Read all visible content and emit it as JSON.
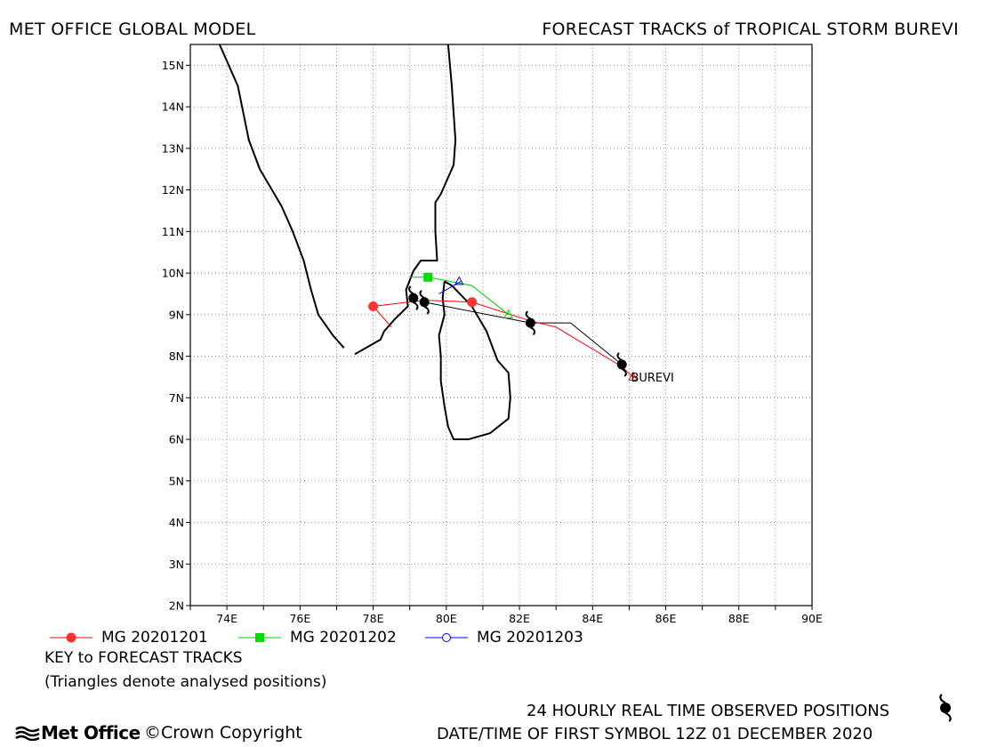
{
  "header": {
    "left_title": "MET OFFICE GLOBAL MODEL",
    "right_title": "FORECAST TRACKS of TROPICAL STORM BUREVI"
  },
  "map": {
    "lon_range": [
      73,
      90
    ],
    "lat_range": [
      2,
      15.5
    ],
    "grid": "dotted",
    "x_ticks": [
      "74E",
      "76E",
      "78E",
      "80E",
      "82E",
      "84E",
      "86E",
      "88E",
      "90E"
    ],
    "y_ticks": [
      "2N",
      "3N",
      "4N",
      "5N",
      "6N",
      "7N",
      "8N",
      "9N",
      "10N",
      "11N",
      "12N",
      "13N",
      "14N",
      "15N"
    ],
    "storm_label": "BUREVI"
  },
  "chart_data": {
    "type": "map_tracks",
    "observed_track": {
      "name": "24 HOURLY REAL TIME OBSERVED POSITIONS",
      "color": "#000000",
      "points": [
        [
          84.8,
          7.8
        ],
        [
          82.3,
          8.8
        ],
        [
          79.4,
          9.3
        ],
        [
          79.1,
          9.4
        ]
      ]
    },
    "observed_track_line": [
      [
        84.8,
        7.8
      ],
      [
        83.4,
        8.8
      ],
      [
        82.3,
        8.8
      ],
      [
        79.4,
        9.3
      ]
    ],
    "forecast_tracks": [
      {
        "name": "MG 20201201",
        "color": "#ff0000",
        "marker": "circle-filled",
        "points": [
          [
            85.1,
            7.5
          ],
          [
            84.8,
            7.75
          ],
          [
            83.0,
            8.7
          ],
          [
            82.3,
            8.85
          ],
          [
            80.7,
            9.3
          ],
          [
            79.4,
            9.35
          ],
          [
            78.0,
            9.2
          ],
          [
            78.5,
            8.7
          ]
        ],
        "markers": [
          [
            80.7,
            9.3
          ],
          [
            78.0,
            9.2
          ]
        ]
      },
      {
        "name": "MG 20201202",
        "color": "#00cc00",
        "marker": "square-filled",
        "points": [
          [
            81.7,
            9.0
          ],
          [
            80.7,
            9.7
          ],
          [
            79.5,
            9.9
          ],
          [
            79.0,
            9.9
          ]
        ],
        "markers": [
          [
            79.5,
            9.9
          ]
        ]
      },
      {
        "name": "MG 20201203",
        "color": "#0000ff",
        "marker": "circle-open",
        "points": [
          [
            80.4,
            9.8
          ],
          [
            79.8,
            9.5
          ]
        ],
        "markers": []
      }
    ],
    "analysed_triangles": [
      {
        "lon": 85.1,
        "lat": 7.5,
        "color": "#ff0000"
      },
      {
        "lon": 81.7,
        "lat": 9.0,
        "color": "#00cc00"
      },
      {
        "lon": 80.35,
        "lat": 9.8,
        "color": "#0000ff"
      }
    ],
    "coastlines": [
      [
        [
          73.8,
          15.5
        ],
        [
          74.3,
          14.5
        ],
        [
          74.6,
          13.2
        ],
        [
          74.9,
          12.5
        ],
        [
          75.5,
          11.6
        ],
        [
          75.8,
          11.0
        ],
        [
          76.1,
          10.3
        ],
        [
          76.3,
          9.6
        ],
        [
          76.5,
          9.0
        ],
        [
          76.9,
          8.5
        ],
        [
          77.2,
          8.2
        ]
      ],
      [
        [
          80.05,
          15.5
        ],
        [
          80.15,
          14.5
        ],
        [
          80.25,
          13.2
        ],
        [
          80.2,
          12.6
        ],
        [
          79.85,
          11.9
        ],
        [
          79.7,
          11.7
        ],
        [
          79.7,
          11.0
        ],
        [
          79.75,
          10.3
        ],
        [
          79.3,
          10.3
        ],
        [
          79.1,
          10.05
        ],
        [
          78.9,
          9.6
        ],
        [
          78.95,
          9.2
        ],
        [
          78.6,
          8.9
        ],
        [
          78.3,
          8.6
        ],
        [
          78.2,
          8.4
        ],
        [
          77.8,
          8.2
        ],
        [
          77.5,
          8.05
        ]
      ],
      [
        [
          79.95,
          9.8
        ],
        [
          80.15,
          9.7
        ],
        [
          80.7,
          9.2
        ],
        [
          81.1,
          8.6
        ],
        [
          81.4,
          7.9
        ],
        [
          81.7,
          7.6
        ],
        [
          81.75,
          7.0
        ],
        [
          81.7,
          6.5
        ],
        [
          81.2,
          6.15
        ],
        [
          80.6,
          6.0
        ],
        [
          80.2,
          6.0
        ],
        [
          80.05,
          6.3
        ],
        [
          79.95,
          6.8
        ],
        [
          79.85,
          7.4
        ],
        [
          79.85,
          8.0
        ],
        [
          79.8,
          8.5
        ],
        [
          79.95,
          9.0
        ],
        [
          79.9,
          9.4
        ],
        [
          79.95,
          9.8
        ]
      ]
    ]
  },
  "legend": [
    {
      "label": "MG 20201201",
      "color": "#ff0000",
      "marker": "circle-filled"
    },
    {
      "label": "MG 20201202",
      "color": "#00cc00",
      "marker": "square-filled"
    },
    {
      "label": "MG 20201203",
      "color": "#0000ff",
      "marker": "circle-open"
    }
  ],
  "key": {
    "title": "KEY to FORECAST TRACKS",
    "note": "(Triangles denote analysed positions)"
  },
  "footer": {
    "observed_label": "24 HOURLY REAL TIME OBSERVED POSITIONS",
    "date_label": "DATE/TIME OF FIRST SYMBOL 12Z 01 DECEMBER 2020",
    "logo_text": "Met Office",
    "copyright": "©Crown Copyright"
  }
}
